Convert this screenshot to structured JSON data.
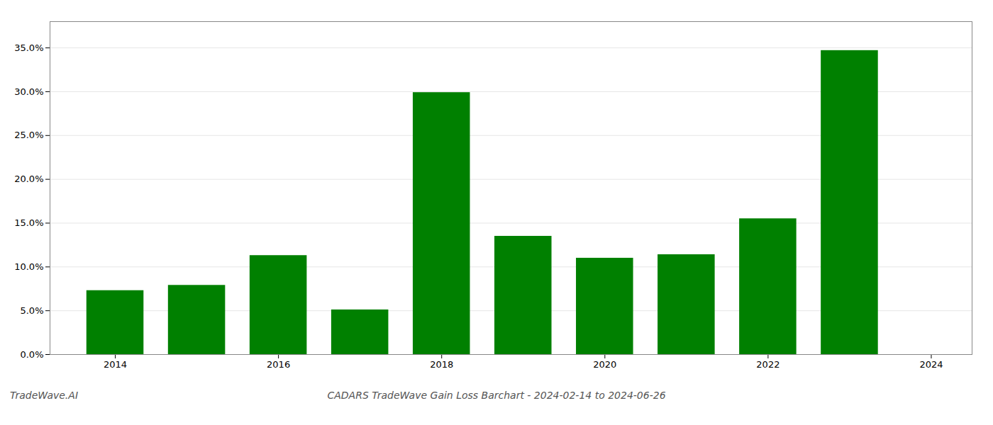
{
  "chart_data": {
    "type": "bar",
    "title": "CADARS TradeWave Gain Loss Barchart - 2024-02-14 to 2024-06-26",
    "annotations": [
      "TradeWave.AI"
    ],
    "x": [
      2014,
      2015,
      2016,
      2017,
      2018,
      2019,
      2020,
      2021,
      2022,
      2023
    ],
    "values": [
      0.073,
      0.079,
      0.113,
      0.051,
      0.299,
      0.135,
      0.11,
      0.114,
      0.155,
      0.347
    ],
    "color": "#008000",
    "xlim": [
      2013.2,
      2024.5
    ],
    "xticks": [
      2014,
      2016,
      2018,
      2020,
      2022,
      2024
    ],
    "ylim": [
      0,
      0.38
    ],
    "yticks": [
      {
        "value": 0.0,
        "label": "0.0%"
      },
      {
        "value": 0.05,
        "label": "5.0%"
      },
      {
        "value": 0.1,
        "label": "10.0%"
      },
      {
        "value": 0.15,
        "label": "15.0%"
      },
      {
        "value": 0.2,
        "label": "20.0%"
      },
      {
        "value": 0.25,
        "label": "25.0%"
      },
      {
        "value": 0.3,
        "label": "30.0%"
      },
      {
        "value": 0.35,
        "label": "35.0%"
      }
    ],
    "grid": true
  }
}
